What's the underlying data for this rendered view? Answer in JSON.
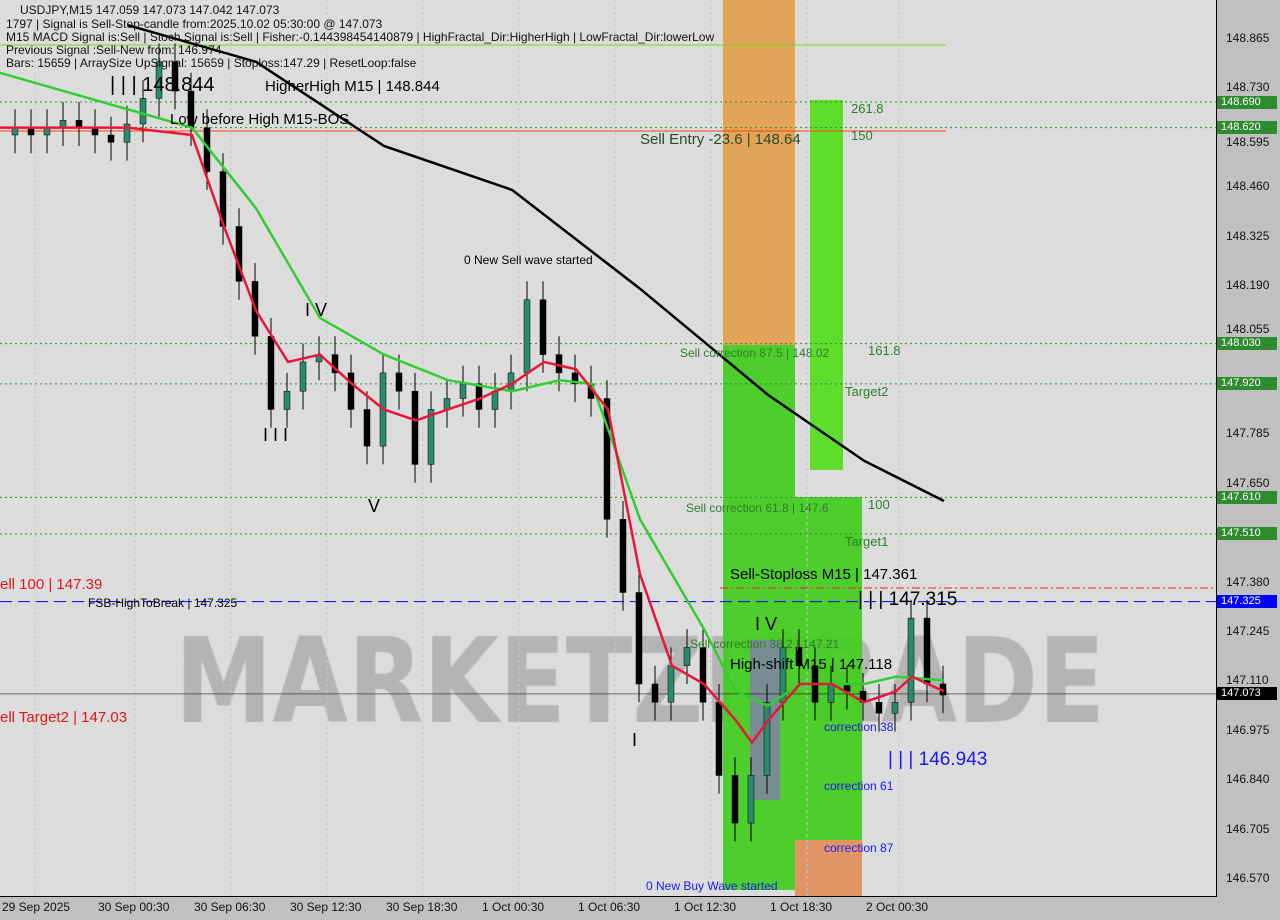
{
  "header": {
    "symbol_line": "USDJPY,M15  147.059 147.073 147.042 147.073",
    "line2": "1797 | Signal is Sell-Stop-candle  from:2025.10.02 05:30:00 @ 147.073",
    "line3": "M15 MACD Signal is:Sell | Stoch Signal is:Sell | Fisher:-0.144398454140879 | HighFractal_Dir:HigherHigh | LowFractal_Dir:lowerLow",
    "line4": "Previous Signal :Sell-New from: 146.974",
    "line5": "Bars: 15659 | ArraySize UpSignal: 15659 | Stoploss:147.29 | ResetLoop:false"
  },
  "watermark": "MARKETZITRADE",
  "chart_data": {
    "type": "line",
    "title": "USDJPY,M15",
    "ylim": [
      146.52,
      148.93
    ],
    "y_ticks": [
      "148.865",
      "148.730",
      "148.595",
      "148.460",
      "148.325",
      "148.190",
      "148.055",
      "147.785",
      "147.650",
      "147.380",
      "147.245",
      "147.110",
      "146.975",
      "146.840",
      "146.705",
      "146.570"
    ],
    "x_ticks": [
      "29 Sep 2025",
      "30 Sep 00:30",
      "30 Sep 06:30",
      "30 Sep 12:30",
      "30 Sep 18:30",
      "1 Oct 00:30",
      "1 Oct 06:30",
      "1 Oct 12:30",
      "1 Oct 18:30",
      "2 Oct 00:30"
    ],
    "close_hourly": [
      148.6,
      148.62,
      148.6,
      148.62,
      148.64,
      148.62,
      148.6,
      148.58,
      148.63,
      148.7,
      148.8,
      148.72,
      148.62,
      148.5,
      148.35,
      148.2,
      148.05,
      147.85,
      147.9,
      147.98,
      148.0,
      147.95,
      147.85,
      147.75,
      147.95,
      147.9,
      147.7,
      147.85,
      147.88,
      147.92,
      147.85,
      147.9,
      147.95,
      148.15,
      148.0,
      147.95,
      147.92,
      147.88,
      147.55,
      147.35,
      147.1,
      147.05,
      147.15,
      147.2,
      147.05,
      146.85,
      146.72,
      146.85,
      147.05,
      147.2,
      147.15,
      147.05,
      147.1,
      147.08,
      147.05,
      147.02,
      147.05,
      147.28,
      147.1,
      147.07
    ],
    "series": [
      {
        "color": "#000000",
        "points": [
          [
            8,
            148.9
          ],
          [
            16,
            148.8
          ],
          [
            24,
            148.57
          ],
          [
            32,
            148.45
          ],
          [
            40,
            148.18
          ],
          [
            48,
            147.89
          ],
          [
            54,
            147.71
          ],
          [
            59,
            147.6
          ]
        ]
      },
      {
        "color": "#33cc33",
        "points": [
          [
            0,
            148.77
          ],
          [
            8,
            148.67
          ],
          [
            12,
            148.62
          ],
          [
            16,
            148.4
          ],
          [
            20,
            148.1
          ],
          [
            24,
            148.0
          ],
          [
            28,
            147.93
          ],
          [
            32,
            147.9
          ],
          [
            35,
            147.93
          ],
          [
            37,
            147.92
          ],
          [
            40,
            147.55
          ],
          [
            44,
            147.25
          ],
          [
            46,
            147.08
          ],
          [
            48,
            147.04
          ],
          [
            50,
            147.1
          ],
          [
            54,
            147.1
          ],
          [
            56,
            147.12
          ],
          [
            59,
            147.11
          ]
        ]
      },
      {
        "color": "#e8173a",
        "points": [
          [
            0,
            148.62
          ],
          [
            8,
            148.62
          ],
          [
            12,
            148.6
          ],
          [
            14,
            148.35
          ],
          [
            16,
            148.12
          ],
          [
            18,
            147.98
          ],
          [
            20,
            148.0
          ],
          [
            22,
            147.92
          ],
          [
            24,
            147.85
          ],
          [
            26,
            147.82
          ],
          [
            28,
            147.85
          ],
          [
            30,
            147.88
          ],
          [
            32,
            147.92
          ],
          [
            34,
            147.98
          ],
          [
            36,
            147.96
          ],
          [
            38,
            147.85
          ],
          [
            40,
            147.4
          ],
          [
            42,
            147.15
          ],
          [
            44,
            147.1
          ],
          [
            46,
            147.0
          ],
          [
            47,
            146.94
          ],
          [
            48,
            147.0
          ],
          [
            50,
            147.1
          ],
          [
            52,
            147.1
          ],
          [
            54,
            147.05
          ],
          [
            56,
            147.08
          ],
          [
            57,
            147.12
          ],
          [
            59,
            147.08
          ]
        ]
      }
    ]
  },
  "levels": [
    {
      "price": 148.69,
      "tag": "148.690",
      "color": "#2e8b2e",
      "style": "dot"
    },
    {
      "price": 148.62,
      "tag": "148.620",
      "color": "#2e8b2e",
      "style": "dot"
    },
    {
      "price": 148.03,
      "tag": "148.030",
      "color": "#2e8b2e",
      "style": "dot"
    },
    {
      "price": 147.92,
      "tag": "147.920",
      "color": "#2e8b2e",
      "style": "dot"
    },
    {
      "price": 147.61,
      "tag": "147.610",
      "color": "#2e8b2e",
      "style": "dot"
    },
    {
      "price": 147.51,
      "tag": "147.510",
      "color": "#2e8b2e",
      "style": "dot"
    },
    {
      "price": 147.325,
      "tag": "147.325",
      "color": "#0000ff",
      "style": "dash"
    },
    {
      "price": 147.073,
      "tag": "147.073",
      "color": "#000000",
      "style": "solid"
    }
  ],
  "labels": {
    "high": "| | | 148.844",
    "higher_high": "HigherHigh  M15 | 148.844",
    "low_before_high": "Low before High   M15-BOS",
    "sell_entry": "Sell Entry -23.6 | 148.64",
    "f261": "261.8",
    "f150": "150",
    "new_sell_wave": "0 New Sell wave started",
    "sell_corr875": "Sell correction 87.5 | 148.02",
    "f1618": "161.8",
    "target2": "Target2",
    "sell_corr618": "Sell correction 61.8 | 147.6",
    "f100": "100",
    "target1": "Target1",
    "sell_stoploss": "Sell-Stoploss M15 | 147.361",
    "level_315": "| | | 147.315",
    "sell100": "ell 100 | 147.39",
    "fsb": "FSB-HighToBreak | 147.325",
    "sell_corr382": "Sell correction 38.2 | 147.21",
    "high_shift": "High-shift M15 | 147.118",
    "sell_target2": "ell Target2 | 147.03",
    "corr38": "correction 38",
    "level_943": "| | | 146.943",
    "corr61": "correction 61",
    "corr87": "correction 87",
    "new_buy_wave": "0 New Buy Wave started",
    "w_I": "I",
    "w_III": "I I I",
    "w_IV": "I V",
    "w_V": "V",
    "w_IV2": "I V"
  }
}
